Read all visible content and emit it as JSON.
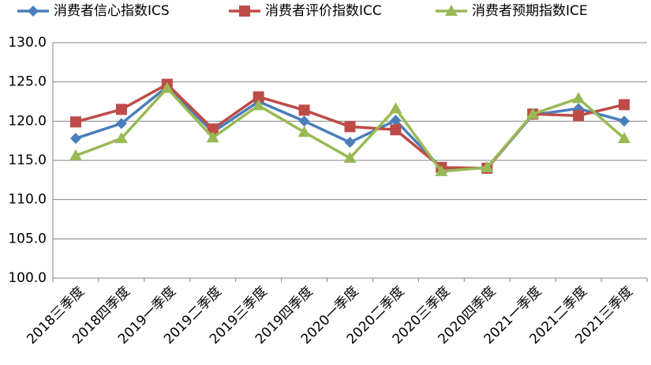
{
  "chart_data": {
    "type": "line",
    "categories": [
      "2018三季度",
      "2018四季度",
      "2019一季度",
      "2019二季度",
      "2019三季度",
      "2019四季度",
      "2020一季度",
      "2020二季度",
      "2020三季度",
      "2020四季度",
      "2021一季度",
      "2021二季度",
      "2021三季度"
    ],
    "series": [
      {
        "name": "消费者信心指数ICS",
        "color": "#4a7ebb",
        "marker": "diamond",
        "values": [
          117.8,
          119.7,
          124.4,
          118.6,
          122.5,
          120.0,
          117.3,
          120.1,
          114.0,
          114.0,
          120.8,
          121.6,
          120.0
        ]
      },
      {
        "name": "消费者评价指数ICC",
        "color": "#be4b48",
        "marker": "square",
        "values": [
          119.9,
          121.5,
          124.7,
          119.0,
          123.1,
          121.4,
          119.3,
          118.9,
          114.1,
          114.0,
          120.9,
          120.7,
          122.1
        ]
      },
      {
        "name": "消费者预期指数ICE",
        "color": "#98b954",
        "marker": "triangle",
        "values": [
          115.6,
          117.8,
          124.2,
          117.9,
          122.0,
          118.6,
          115.3,
          121.6,
          113.6,
          114.1,
          120.9,
          122.9,
          117.8
        ]
      }
    ],
    "ylim": [
      100,
      130
    ],
    "yticks": [
      {
        "value": 100,
        "label": "100.0"
      },
      {
        "value": 105,
        "label": "105.0"
      },
      {
        "value": 110,
        "label": "110.0"
      },
      {
        "value": 115,
        "label": "115.0"
      },
      {
        "value": 120,
        "label": "120.0"
      },
      {
        "value": 125,
        "label": "125.0"
      },
      {
        "value": 130,
        "label": "130.0"
      }
    ],
    "grid": true,
    "legend": "top"
  }
}
